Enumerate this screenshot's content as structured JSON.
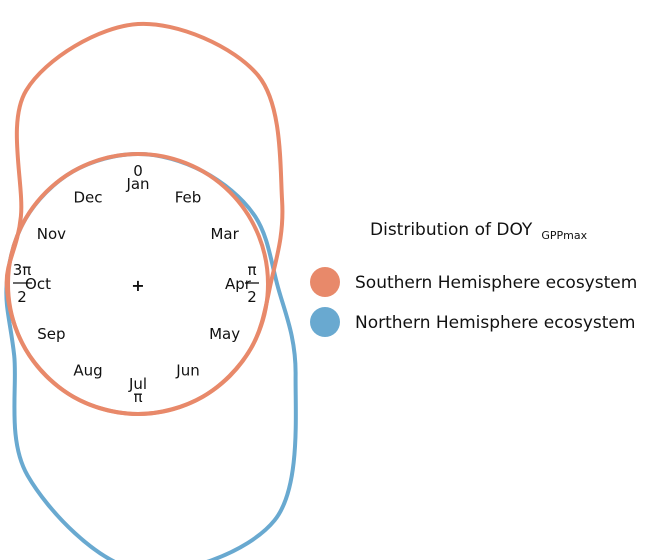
{
  "chart_data": {
    "type": "polar-density",
    "title": "Distribution of DOY",
    "title_subscript": "GPPmax",
    "months": [
      "Jan",
      "Feb",
      "Mar",
      "Apr",
      "May",
      "Jun",
      "Jul",
      "Aug",
      "Sep",
      "Oct",
      "Nov",
      "Dec"
    ],
    "angle_labels": {
      "zero": "0",
      "half_pi_num": "π",
      "half_pi_den": "2",
      "pi": "π",
      "three_half_pi_num": "3π",
      "three_half_pi_den": "2"
    },
    "center_marker": "+",
    "reference_circle_color": "#E8896A",
    "series": [
      {
        "name": "Southern Hemisphere ecosystem",
        "color": "#E8896A",
        "radius_by_month": [
          2.0,
          1.85,
          1.28,
          1.02,
          1.0,
          1.0,
          1.0,
          1.0,
          1.0,
          1.01,
          1.04,
          1.72
        ]
      },
      {
        "name": "Northern Hemisphere ecosystem",
        "color": "#69A9D0",
        "radius_by_month": [
          1.0,
          1.0,
          1.04,
          1.07,
          1.4,
          2.1,
          2.2,
          1.7,
          1.1,
          1.01,
          1.0,
          1.0
        ]
      }
    ]
  }
}
